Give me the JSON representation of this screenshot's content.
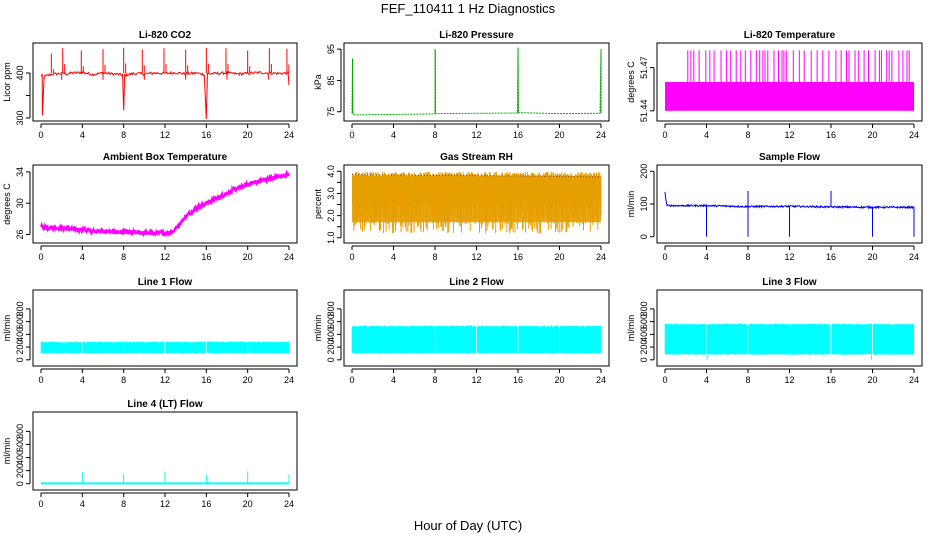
{
  "figure": {
    "title": "FEF_110411  1 Hz Diagnostics",
    "x_label": "Hour of Day (UTC)"
  },
  "chart_data": [
    {
      "id": "co2",
      "type": "line",
      "title": "Li-820 CO2",
      "ylabel": "Licor ppm",
      "color": "#ff0000",
      "xlim": [
        0,
        24
      ],
      "ylim": [
        300,
        460
      ],
      "x_ticks": [
        0,
        4,
        8,
        12,
        16,
        20,
        24
      ],
      "y_ticks": [
        300,
        350,
        400
      ],
      "y_tick_labels": [
        "300",
        "",
        "400"
      ],
      "series": [
        {
          "x": [
            0.0,
            0.12,
            0.14,
            0.3,
            1.0,
            2.0,
            2.5,
            3.0,
            4.0,
            5.0,
            6.0,
            7.0,
            7.9,
            8.0,
            8.1,
            9.0,
            10.0,
            11.0,
            12.0,
            13.0,
            14.0,
            15.0,
            15.8,
            16.0,
            16.1,
            17.0,
            18.0,
            19.0,
            20.0,
            21.0,
            22.0,
            23.0,
            23.9,
            24.0
          ],
          "y": [
            395,
            395,
            305,
            392,
            397,
            399,
            398,
            400,
            401,
            397,
            400,
            398,
            396,
            315,
            395,
            399,
            398,
            400,
            399,
            401,
            398,
            400,
            397,
            298,
            398,
            399,
            400,
            398,
            399,
            401,
            400,
            399,
            400,
            373
          ],
          "spikes": [
            [
              1.0,
              443
            ],
            [
              2.1,
              455
            ],
            [
              3.9,
              450
            ],
            [
              6.0,
              453
            ],
            [
              8.0,
              456
            ],
            [
              9.8,
              452
            ],
            [
              11.9,
              455
            ],
            [
              14.0,
              452
            ],
            [
              16.0,
              456
            ],
            [
              17.9,
              455
            ],
            [
              20.0,
              450
            ],
            [
              22.1,
              455
            ],
            [
              23.8,
              454
            ]
          ]
        }
      ]
    },
    {
      "id": "pressure",
      "type": "line",
      "title": "Li-820 Pressure",
      "ylabel": "kPa",
      "color": "#00aa00",
      "xlim": [
        0,
        24
      ],
      "ylim": [
        73,
        96
      ],
      "x_ticks": [
        0,
        4,
        8,
        12,
        16,
        20,
        24
      ],
      "y_ticks": [
        75,
        85,
        95
      ],
      "y_tick_labels": [
        "75",
        "85",
        "95"
      ],
      "series": [
        {
          "x": [
            0.0,
            0.05,
            0.1,
            0.3,
            8.0,
            8.02,
            8.05,
            12.0,
            15.95,
            16.0,
            16.05,
            20.0,
            23.9,
            24.0
          ],
          "y": [
            74.5,
            92,
            74.2,
            74.0,
            74.3,
            95,
            74.4,
            74.5,
            74.6,
            95.5,
            74.7,
            74.4,
            74.5,
            95
          ],
          "spikes": [
            [
              0.05,
              92
            ],
            [
              8.02,
              95
            ],
            [
              16.0,
              95.5
            ],
            [
              24.0,
              95
            ]
          ]
        }
      ]
    },
    {
      "id": "temperature",
      "type": "line",
      "title": "Li-820 Temperature",
      "ylabel": "degrees C",
      "color": "#ff00ff",
      "xlim": [
        0,
        24
      ],
      "ylim": [
        51.435,
        51.485
      ],
      "x_ticks": [
        0,
        4,
        8,
        12,
        16,
        20,
        24
      ],
      "y_ticks": [
        51.44,
        51.47
      ],
      "y_tick_labels": [
        "51.44",
        "51.47"
      ],
      "series": [
        {
          "level_low": 51.44,
          "level_high": 51.46,
          "spike_to": 51.482,
          "x_start": 0,
          "x_end": 24
        }
      ]
    },
    {
      "id": "ambient",
      "type": "line",
      "title": "Ambient Box Temperature",
      "ylabel": "degrees C",
      "color": "#ff00ff",
      "xlim": [
        0,
        24
      ],
      "ylim": [
        25.3,
        34.5
      ],
      "x_ticks": [
        0,
        4,
        8,
        12,
        16,
        20,
        24
      ],
      "y_ticks": [
        26,
        30,
        34
      ],
      "y_tick_labels": [
        "26",
        "30",
        "34"
      ],
      "series": [
        {
          "x": [
            0,
            2,
            4,
            6,
            8,
            10,
            12,
            12.8,
            13.5,
            14,
            15,
            16,
            17,
            18,
            19,
            20,
            21,
            22,
            23,
            24
          ],
          "y": [
            27.0,
            26.8,
            26.6,
            26.4,
            26.3,
            26.2,
            26.2,
            26.4,
            27.5,
            28.3,
            29.4,
            30.0,
            30.6,
            31.3,
            31.9,
            32.4,
            32.8,
            33.1,
            33.4,
            33.7
          ]
        }
      ]
    },
    {
      "id": "rh",
      "type": "line",
      "title": "Gas Stream RH",
      "ylabel": "percent",
      "color": "#e69f00",
      "xlim": [
        0,
        24
      ],
      "ylim": [
        0.9,
        4.15
      ],
      "x_ticks": [
        0,
        4,
        8,
        12,
        16,
        20,
        24
      ],
      "y_ticks": [
        1.0,
        1.5,
        2.0,
        2.5,
        3.0,
        3.5,
        4.0
      ],
      "y_tick_labels": [
        "1.0",
        "",
        "2.0",
        "",
        "3.0",
        "",
        "4.0"
      ],
      "series": [
        {
          "upper": 3.8,
          "lower": 1.2,
          "x_start": 0,
          "x_end": 24
        }
      ]
    },
    {
      "id": "sampleflow",
      "type": "line",
      "title": "Sample Flow",
      "ylabel": "ml/min",
      "color": "#0000ee",
      "xlim": [
        0,
        24
      ],
      "ylim": [
        -10,
        210
      ],
      "x_ticks": [
        0,
        4,
        8,
        12,
        16,
        20,
        24
      ],
      "y_ticks": [
        0,
        100,
        200
      ],
      "y_tick_labels": [
        "0",
        "100",
        "200"
      ],
      "series": [
        {
          "x": [
            0,
            0.1,
            0.2,
            4,
            8,
            12,
            16,
            20,
            24
          ],
          "y": [
            135,
            110,
            95,
            95,
            92,
            93,
            91,
            90,
            90
          ],
          "dips": [
            4.0,
            8.0,
            12.0,
            20.0,
            24.0
          ],
          "spikes": [
            [
              8.0,
              140
            ],
            [
              16.0,
              140
            ]
          ]
        }
      ]
    },
    {
      "id": "line1",
      "type": "line",
      "title": "Line 1 Flow",
      "ylabel": "ml/min",
      "color": "#00ffff",
      "xlim": [
        0,
        24
      ],
      "ylim": [
        -50,
        1050
      ],
      "x_ticks": [
        0,
        4,
        8,
        12,
        16,
        20,
        24
      ],
      "y_ticks": [
        0,
        200,
        400,
        600,
        800
      ],
      "y_tick_labels": [
        "0",
        "200",
        "400",
        "600",
        "800"
      ],
      "series": [
        {
          "low": 100,
          "high": 290,
          "gaps": [
            4,
            8,
            12,
            16,
            20
          ],
          "x_start": 0,
          "x_end": 24
        }
      ]
    },
    {
      "id": "line2",
      "type": "line",
      "title": "Line 2 Flow",
      "ylabel": "ml/min",
      "color": "#00ffff",
      "xlim": [
        0,
        24
      ],
      "ylim": [
        -50,
        1050
      ],
      "x_ticks": [
        0,
        4,
        8,
        12,
        16,
        20,
        24
      ],
      "y_ticks": [
        0,
        200,
        400,
        600,
        800
      ],
      "y_tick_labels": [
        "0",
        "200",
        "400",
        "600",
        "800"
      ],
      "series": [
        {
          "low": 100,
          "high": 540,
          "gaps": [
            4,
            8,
            12,
            16,
            20
          ],
          "x_start": 0,
          "x_end": 24
        }
      ]
    },
    {
      "id": "line3",
      "type": "line",
      "title": "Line 3 Flow",
      "ylabel": "ml/min",
      "color": "#00ffff",
      "xlim": [
        0,
        24
      ],
      "ylim": [
        -50,
        1050
      ],
      "x_ticks": [
        0,
        4,
        8,
        12,
        16,
        20,
        24
      ],
      "y_ticks": [
        0,
        200,
        400,
        600,
        800
      ],
      "y_tick_labels": [
        "0",
        "200",
        "400",
        "600",
        "800"
      ],
      "series": [
        {
          "low": 80,
          "high": 570,
          "gaps": [
            4,
            8,
            12,
            16,
            20
          ],
          "x_start": 0,
          "x_end": 24
        }
      ]
    },
    {
      "id": "line4",
      "type": "line",
      "title": "Line 4 (LT) Flow",
      "ylabel": "ml/min",
      "color": "#00ffff",
      "xlim": [
        0,
        24
      ],
      "ylim": [
        -50,
        1050
      ],
      "x_ticks": [
        0,
        4,
        8,
        12,
        16,
        20,
        24
      ],
      "y_ticks": [
        0,
        200,
        400,
        600,
        800
      ],
      "y_tick_labels": [
        "0",
        "200",
        "400",
        "600",
        "800"
      ],
      "series": [
        {
          "x": [
            0,
            24
          ],
          "y": [
            5,
            5
          ],
          "spikes": [
            [
              4,
              180
            ],
            [
              8,
              150
            ],
            [
              12,
              190
            ],
            [
              16,
              140
            ],
            [
              20,
              190
            ],
            [
              24,
              140
            ]
          ]
        }
      ]
    }
  ]
}
